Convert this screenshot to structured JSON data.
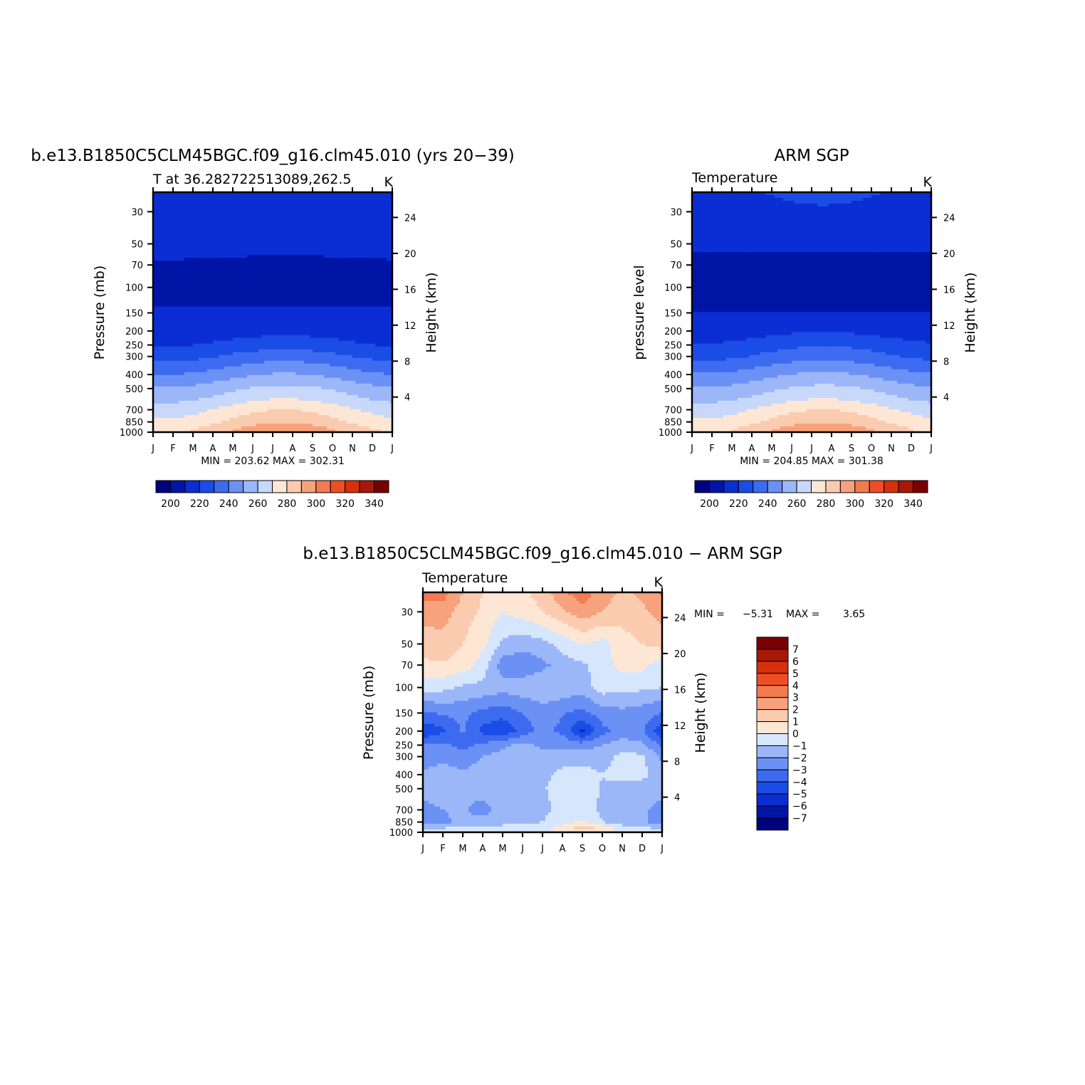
{
  "figure": {
    "colors": {
      "c15": [
        "#00007f",
        "#0015a6",
        "#0a2ed4",
        "#1a4ce6",
        "#3d6bf0",
        "#6b91f5",
        "#9cb7f8",
        "#c7d8fb",
        "#e6eefd",
        "#fde7d4",
        "#fbcbb0",
        "#f7a27c",
        "#f47a50",
        "#ef4e25",
        "#d6300d",
        "#a81806",
        "#7a0000"
      ],
      "c14": [
        "#00007f",
        "#0015a6",
        "#0a2ed4",
        "#1a4ce6",
        "#3d6bf0",
        "#6b91f5",
        "#9cb7f8",
        "#c7d8fb",
        "#fde7d4",
        "#fbcbb0",
        "#f7a27c",
        "#f47a50",
        "#ef4e25",
        "#d6300d",
        "#a81806",
        "#7a0000"
      ],
      "frame": "#000000"
    },
    "months": [
      "J",
      "F",
      "M",
      "A",
      "M",
      "J",
      "J",
      "A",
      "S",
      "O",
      "N",
      "D",
      "J"
    ],
    "pressure_ticks": [
      "30",
      "50",
      "70",
      "100",
      "150",
      "200",
      "250",
      "300",
      "400",
      "500",
      "700",
      "850",
      "1000"
    ],
    "height_ticks": [
      "24",
      "20",
      "16",
      "12",
      "8",
      "4"
    ],
    "panels": [
      {
        "title": "b.e13.B1850C5CLM45BGC.f09_g16.clm45.010 (yrs 20−39)",
        "left_label": "T at 36.282722513089,262.5",
        "right_label": "K",
        "ylabel": "Pressure (mb)",
        "y2label": "Height (km)",
        "stats_text": "MIN = 203.62 MAX = 302.31",
        "colorbar_ticks": [
          "200",
          "220",
          "240",
          "260",
          "280",
          "300",
          "320",
          "340"
        ]
      },
      {
        "title": "ARM SGP",
        "left_label": "Temperature",
        "right_label": "K",
        "ylabel": "pressure level",
        "y2label": "Height (km)",
        "stats_text": "MIN = 204.85 MAX = 301.38",
        "colorbar_ticks": [
          "200",
          "220",
          "240",
          "260",
          "280",
          "300",
          "320",
          "340"
        ]
      },
      {
        "title": "b.e13.B1850C5CLM45BGC.f09_g16.clm45.010 − ARM SGP",
        "left_label": "Temperature",
        "right_label": "K",
        "ylabel": "Pressure (mb)",
        "y2label": "Height (km)",
        "stats_min_label": "MIN =",
        "stats_min": "−5.31",
        "stats_max_label": "MAX =",
        "stats_max": "3.65",
        "colorbar_ticks": [
          "7",
          "6",
          "5",
          "4",
          "3",
          "2",
          "1",
          "0",
          "−1",
          "−2",
          "−3",
          "−4",
          "−5",
          "−6",
          "−7"
        ]
      }
    ]
  },
  "chart_data": [
    {
      "type": "heatmap",
      "title": "b.e13.B1850C5CLM45BGC.f09_g16.clm45.010 (yrs 20−39)",
      "subtitle": "T at 36.282722513089,262.5",
      "units": "K",
      "xlabel": "",
      "ylabel": "Pressure (mb)",
      "y2label": "Height (km)",
      "x": [
        "J",
        "F",
        "M",
        "A",
        "M",
        "J",
        "J",
        "A",
        "S",
        "O",
        "N",
        "D",
        "J"
      ],
      "y_log_pressure": true,
      "ylim": [
        1000,
        22
      ],
      "levels": [
        200,
        210,
        220,
        230,
        240,
        250,
        260,
        270,
        280,
        290,
        300,
        310,
        320,
        330,
        340
      ],
      "min": 203.62,
      "max": 302.31,
      "profile_pressure": [
        1000,
        925,
        850,
        700,
        600,
        500,
        400,
        300,
        250,
        200,
        150,
        100,
        70,
        50,
        30,
        22
      ],
      "profile_january": [
        279,
        276,
        272,
        265,
        258,
        251,
        240,
        226,
        219,
        213,
        211,
        207,
        209,
        213,
        215,
        216
      ],
      "seasonal_amplitude": [
        20,
        19,
        17,
        15,
        13,
        12,
        11,
        10,
        7,
        4,
        1,
        -4,
        -2,
        1,
        4,
        4
      ]
    },
    {
      "type": "heatmap",
      "title": "ARM SGP",
      "subtitle": "Temperature",
      "units": "K",
      "xlabel": "",
      "ylabel": "pressure level",
      "y2label": "Height (km)",
      "x": [
        "J",
        "F",
        "M",
        "A",
        "M",
        "J",
        "J",
        "A",
        "S",
        "O",
        "N",
        "D",
        "J"
      ],
      "y_log_pressure": true,
      "ylim": [
        1000,
        22
      ],
      "levels": [
        200,
        210,
        220,
        230,
        240,
        250,
        260,
        270,
        280,
        290,
        300,
        310,
        320,
        330,
        340
      ],
      "min": 204.85,
      "max": 301.38,
      "profile_pressure": [
        1000,
        925,
        850,
        700,
        600,
        500,
        400,
        300,
        250,
        200,
        150,
        100,
        70,
        50,
        30,
        22
      ],
      "profile_january": [
        278,
        276,
        272,
        265,
        258,
        251,
        241,
        227,
        221,
        214,
        210,
        208,
        207,
        212,
        216,
        218
      ],
      "seasonal_amplitude": [
        21,
        19,
        17,
        15,
        13,
        12,
        11,
        10,
        8,
        5,
        0,
        -4,
        -1,
        1,
        3,
        4
      ]
    },
    {
      "type": "heatmap",
      "title": "b.e13.B1850C5CLM45BGC.f09_g16.clm45.010 − ARM SGP",
      "subtitle": "Temperature",
      "units": "K",
      "xlabel": "",
      "ylabel": "Pressure (mb)",
      "y2label": "Height (km)",
      "x": [
        "J",
        "F",
        "M",
        "A",
        "M",
        "J",
        "J",
        "A",
        "S",
        "O",
        "N",
        "D",
        "J"
      ],
      "y_log_pressure": true,
      "ylim": [
        1000,
        22
      ],
      "levels": [
        -7,
        -6,
        -5,
        -4,
        -3,
        -2,
        -1,
        0,
        1,
        2,
        3,
        4,
        5,
        6,
        7
      ],
      "min": -5.31,
      "max": 3.65,
      "grid_pressure": [
        1000,
        925,
        850,
        700,
        500,
        400,
        300,
        250,
        200,
        150,
        100,
        70,
        50,
        30,
        22
      ],
      "grid_values": [
        [
          -0.5,
          -0.6,
          -0.6,
          -0.6,
          -0.5,
          -0.4,
          -0.2,
          0.3,
          0.8,
          0.3,
          -0.2,
          -0.4,
          -0.5
        ],
        [
          -1.2,
          -1.1,
          -0.9,
          -0.8,
          -0.7,
          -0.6,
          -0.5,
          0.4,
          1.6,
          0.6,
          -0.6,
          -1.0,
          -1.2
        ],
        [
          -2.5,
          -2.2,
          -1.8,
          -1.6,
          -1.4,
          -1.2,
          -1.0,
          -0.5,
          0.2,
          -1.0,
          -1.5,
          -1.8,
          -2.6
        ],
        [
          -2.3,
          -2.0,
          -1.8,
          -2.5,
          -1.5,
          -1.3,
          -1.2,
          -0.8,
          -0.6,
          -1.2,
          -1.5,
          -1.8,
          -2.4
        ],
        [
          -1.6,
          -1.5,
          -1.7,
          -1.5,
          -1.4,
          -1.3,
          -1.1,
          -0.6,
          -0.4,
          -1.1,
          -1.4,
          -1.6,
          -1.6
        ],
        [
          -1.8,
          -1.6,
          -1.8,
          -1.5,
          -1.4,
          -1.3,
          -1.2,
          -0.8,
          -0.5,
          -1.0,
          -0.6,
          -0.7,
          -1.6
        ],
        [
          -2.5,
          -2.2,
          -2.6,
          -2.0,
          -1.6,
          -1.5,
          -1.6,
          -1.3,
          -1.5,
          -1.4,
          -0.7,
          -0.8,
          -2.2
        ],
        [
          -3.0,
          -2.8,
          -3.3,
          -2.8,
          -2.2,
          -1.8,
          -2.2,
          -2.3,
          -2.5,
          -2.0,
          -1.5,
          -1.8,
          -3.2
        ],
        [
          -4.8,
          -4.2,
          -2.9,
          -4.3,
          -4.8,
          -3.6,
          -2.6,
          -3.3,
          -5.2,
          -3.3,
          -2.5,
          -2.8,
          -4.8
        ],
        [
          -3.2,
          -2.8,
          -2.7,
          -3.3,
          -3.6,
          -3.0,
          -2.5,
          -2.9,
          -3.3,
          -2.5,
          -2.3,
          -2.5,
          -3.0
        ],
        [
          -0.6,
          -0.7,
          -1.2,
          -1.3,
          -1.6,
          -1.4,
          -1.1,
          -1.3,
          -1.5,
          -0.5,
          -0.7,
          -0.8,
          -1.0
        ],
        [
          0.8,
          0.9,
          0.6,
          -0.5,
          -2.5,
          -2.8,
          -2.3,
          -1.5,
          -1.2,
          -0.5,
          0.4,
          0.3,
          -0.6
        ],
        [
          1.4,
          1.6,
          1.0,
          0.3,
          -1.2,
          -1.6,
          -1.3,
          -0.6,
          0.1,
          -0.4,
          0.6,
          1.0,
          1.4
        ],
        [
          2.5,
          2.5,
          1.5,
          0.8,
          0.0,
          0.4,
          1.0,
          1.8,
          2.6,
          2.0,
          1.4,
          1.8,
          2.4
        ],
        [
          3.4,
          3.5,
          2.0,
          1.0,
          0.4,
          0.7,
          1.5,
          2.8,
          3.6,
          2.5,
          1.8,
          2.2,
          3.2
        ]
      ]
    }
  ]
}
